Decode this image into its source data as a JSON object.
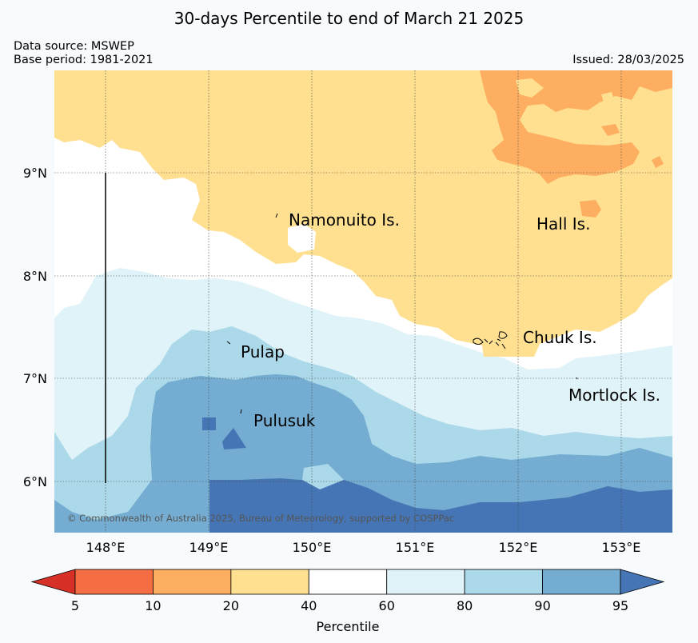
{
  "title": "30-days Percentile to end of March 21 2025",
  "data_source": "Data source: MSWEP",
  "base_period": "Base period: 1981-2021",
  "issued": "Issued: 28/03/2025",
  "copyright": "© Commonwealth of Australia 2025, Bureau of Meteorology, supported by COSPPac",
  "lat_labels": [
    "9°N",
    "8°N",
    "7°N",
    "6°N"
  ],
  "lon_labels": [
    "148°E",
    "149°E",
    "150°E",
    "151°E",
    "152°E",
    "153°E"
  ],
  "places": [
    {
      "id": "namonuito",
      "label": "Namonuito Is."
    },
    {
      "id": "hall",
      "label": "Hall Is."
    },
    {
      "id": "chuuk",
      "label": "Chuuk Is."
    },
    {
      "id": "pulap",
      "label": "Pulap"
    },
    {
      "id": "mortlock",
      "label": "Mortlock Is."
    },
    {
      "id": "pulusuk",
      "label": "Pulusuk"
    }
  ],
  "colorbar": {
    "title": "Percentile",
    "ticks": [
      "5",
      "10",
      "20",
      "40",
      "60",
      "80",
      "90",
      "95"
    ],
    "colors": [
      "#d73027",
      "#f46d43",
      "#fdae61",
      "#fee090",
      "#ffffff",
      "#e0f3f8",
      "#abd9e9",
      "#74add1",
      "#4575b4"
    ]
  }
}
